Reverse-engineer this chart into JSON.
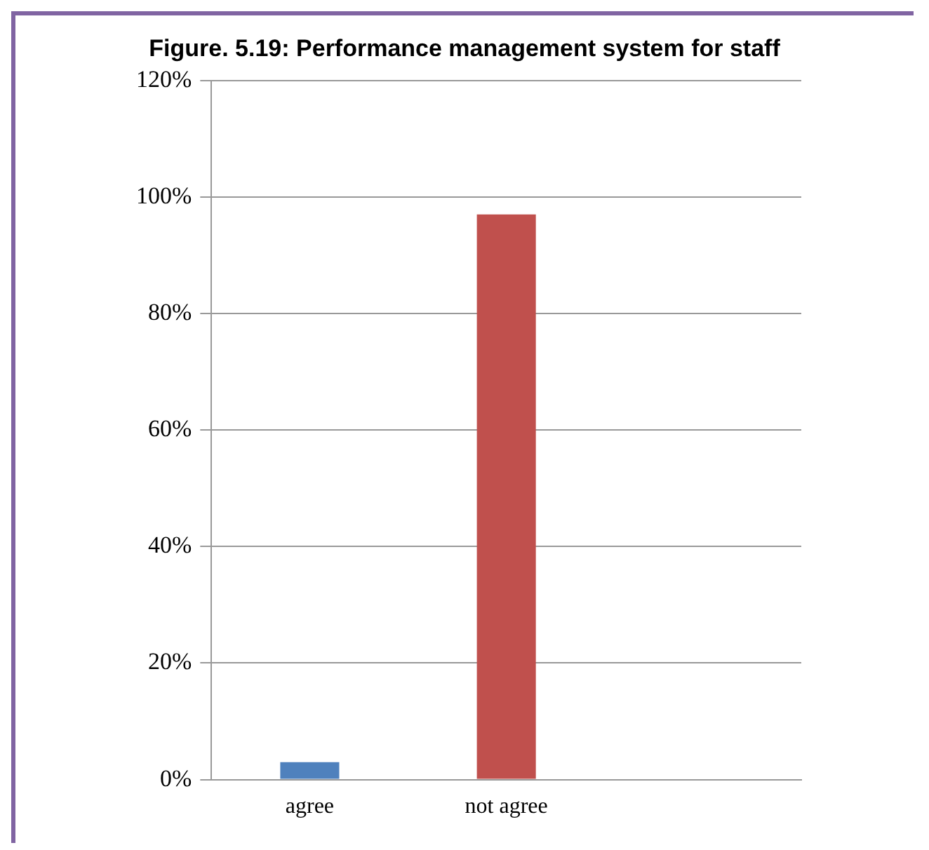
{
  "chart_data": {
    "type": "bar",
    "title": "Figure. 5.19: Performance management system for staff",
    "categories": [
      "agree",
      "not agree",
      null
    ],
    "values": [
      3,
      97,
      null
    ],
    "colors": [
      "#4f81bd",
      "#c0504d",
      "#c0504d"
    ],
    "ylim": [
      0,
      120
    ],
    "yticks": [
      {
        "value": 0,
        "label": "0%"
      },
      {
        "value": 20,
        "label": "20%"
      },
      {
        "value": 40,
        "label": "40%"
      },
      {
        "value": 60,
        "label": "60%"
      },
      {
        "value": 80,
        "label": "80%"
      },
      {
        "value": 100,
        "label": "100%"
      },
      {
        "value": 120,
        "label": "120%"
      }
    ],
    "grid": "y",
    "legend": false
  }
}
